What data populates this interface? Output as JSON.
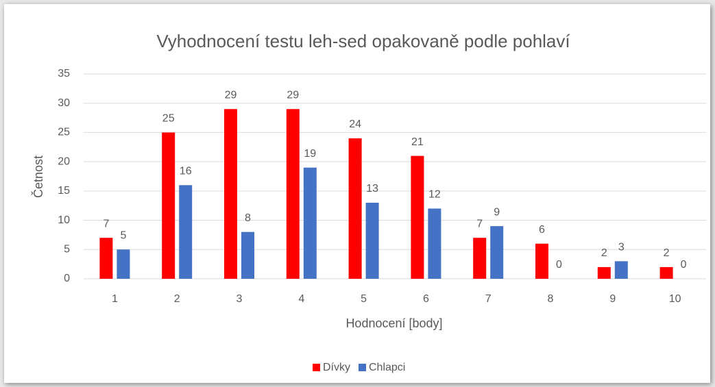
{
  "chart_data": {
    "type": "bar",
    "title": "Vyhodnocení testu leh-sed opakovaně podle pohlaví",
    "x_label": "Hodnocení [body]",
    "y_label": "Četnost",
    "categories": [
      "1",
      "2",
      "3",
      "4",
      "5",
      "6",
      "7",
      "8",
      "9",
      "10"
    ],
    "series": [
      {
        "name": "Dívky",
        "color": "#ff0000",
        "values": [
          7,
          25,
          29,
          29,
          24,
          21,
          7,
          6,
          2,
          2
        ]
      },
      {
        "name": "Chlapci",
        "color": "#4472c4",
        "values": [
          5,
          16,
          8,
          19,
          13,
          12,
          9,
          0,
          3,
          0
        ]
      }
    ],
    "ylim": [
      0,
      35
    ],
    "yticks": [
      0,
      5,
      10,
      15,
      20,
      25,
      30,
      35
    ],
    "grid": true,
    "legend": "bottom"
  }
}
